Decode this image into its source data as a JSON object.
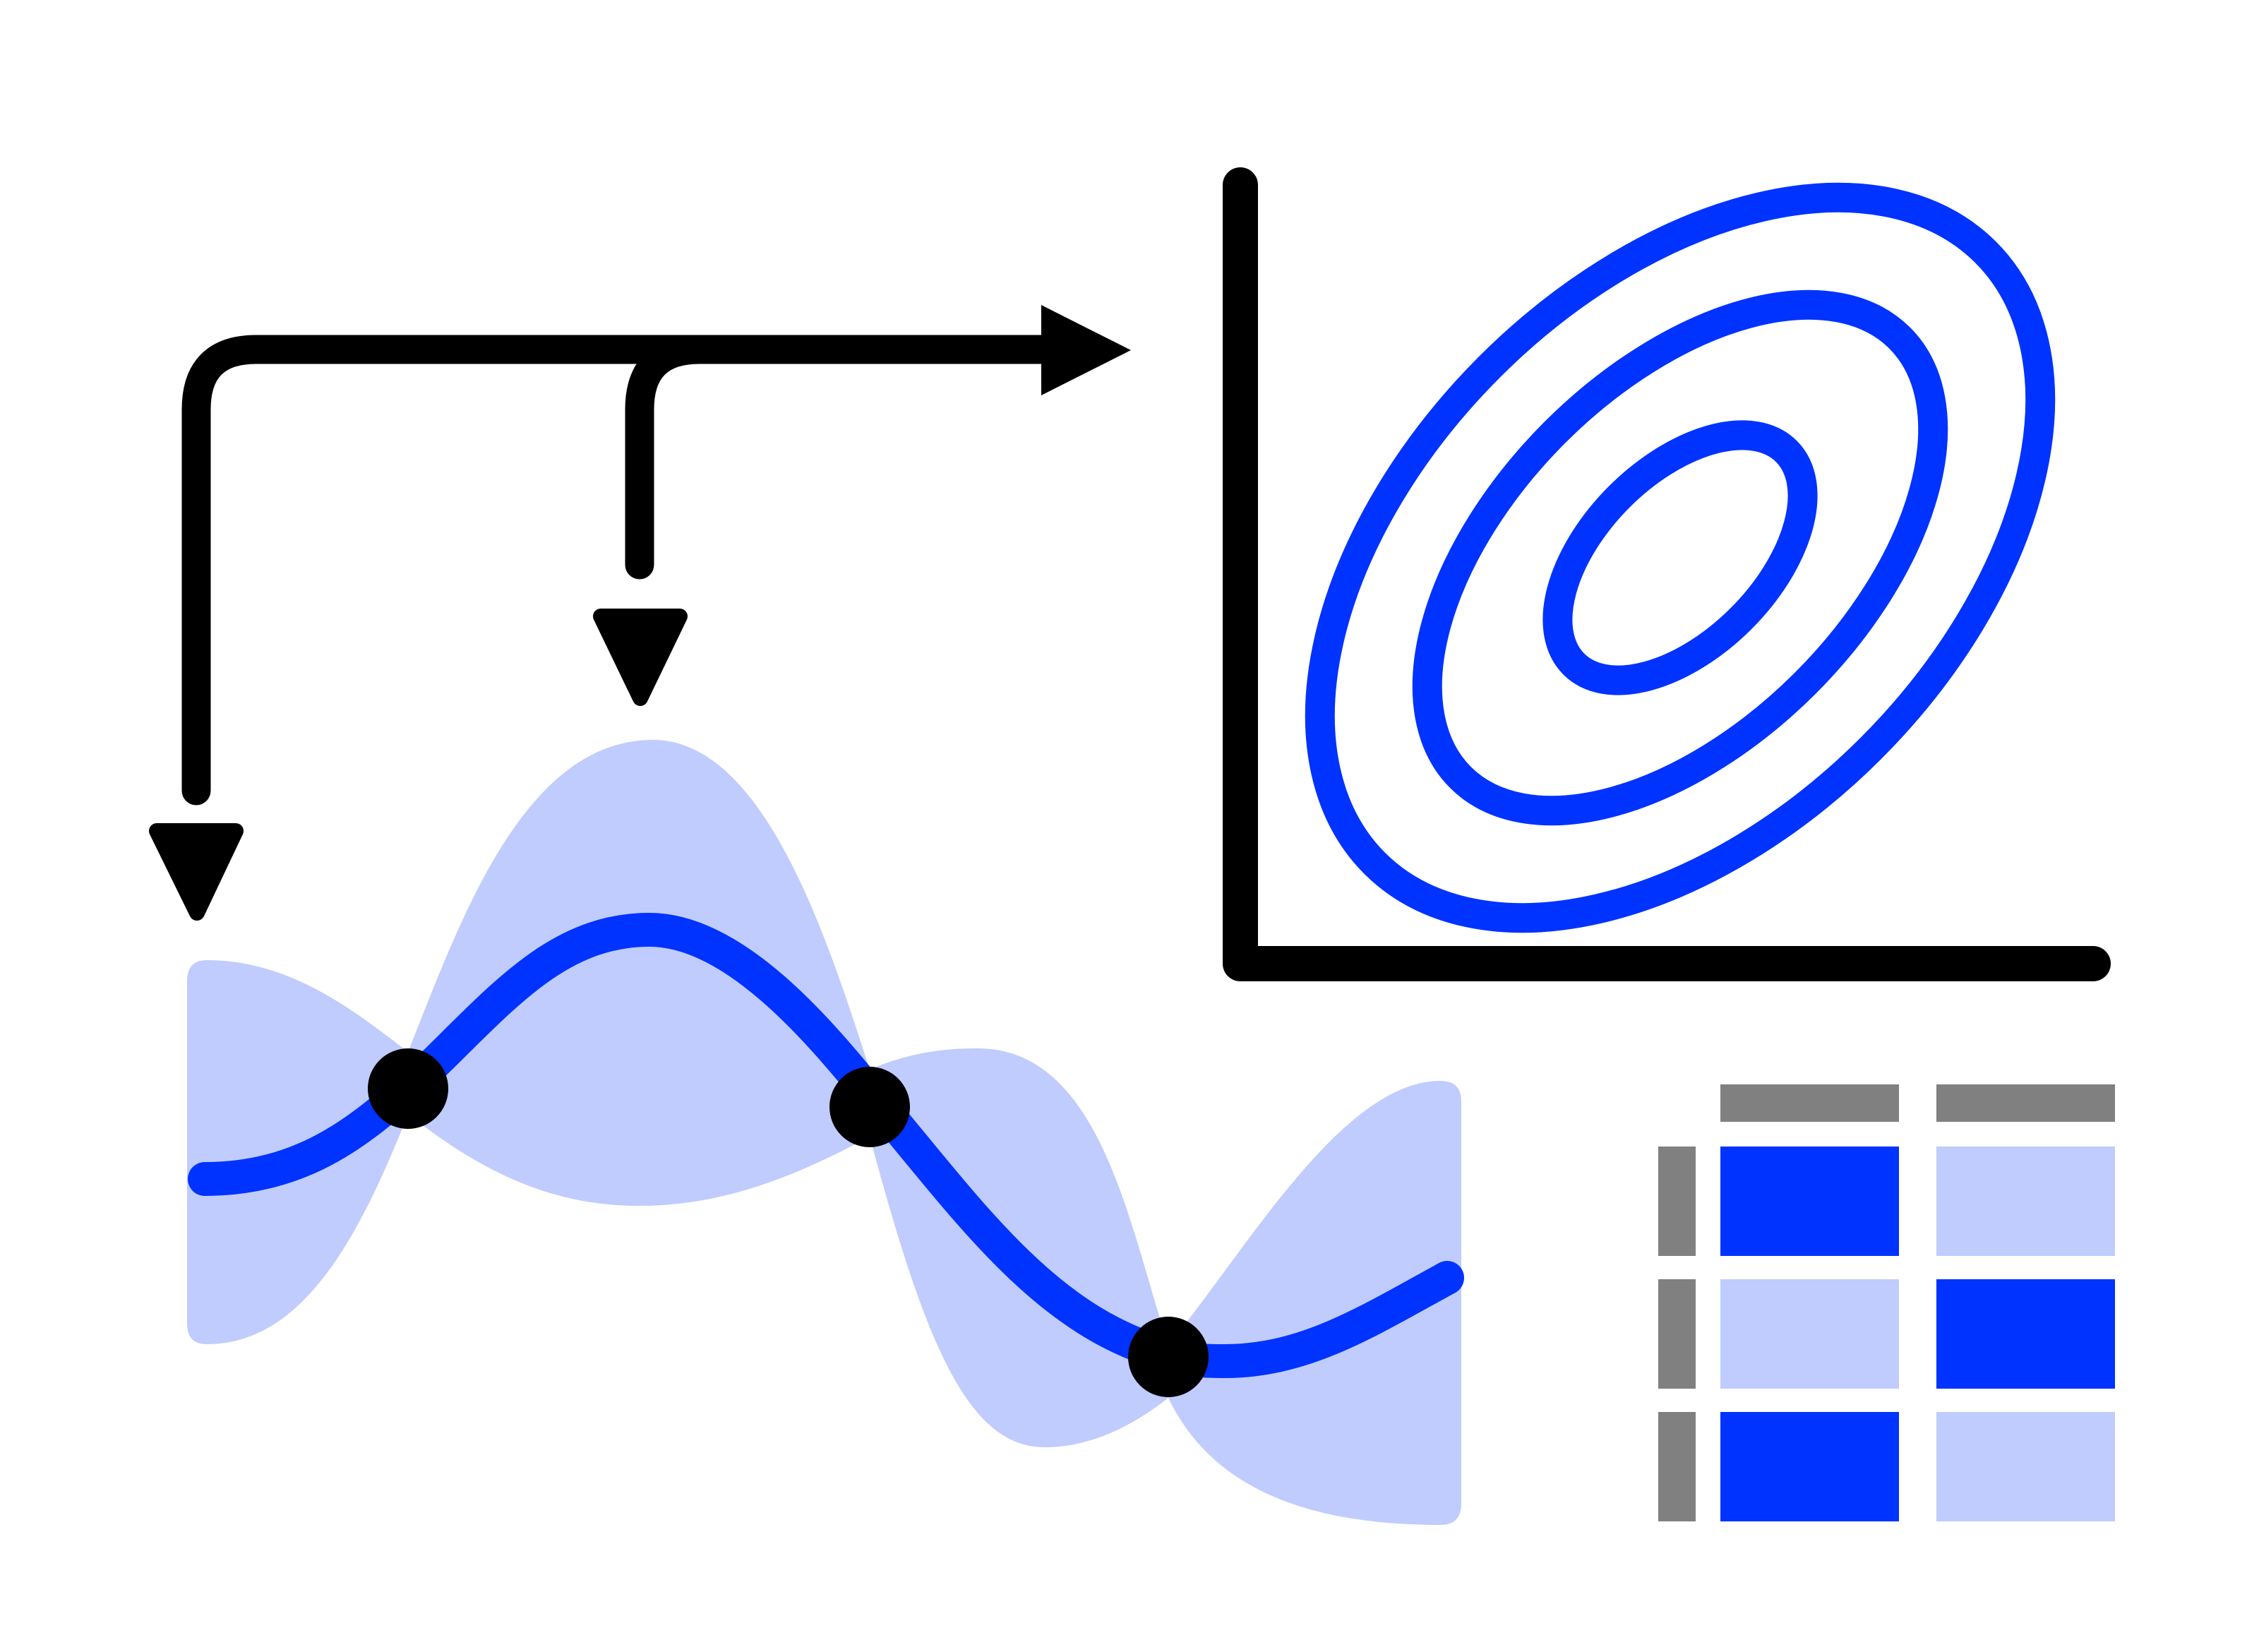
{
  "illustration": {
    "colors": {
      "background": "#ffffff",
      "ink": "#000000",
      "accent": "#0033ff",
      "accent_light": "#c0ccfd",
      "gray": "#808080"
    },
    "arrows": {
      "count": 3,
      "direction": [
        "down",
        "down",
        "right"
      ]
    },
    "gp_regression": {
      "observed_points": 4,
      "has_confidence_band": true
    },
    "contour_plot": {
      "levels": 3
    },
    "matrix": {
      "rows": 3,
      "columns": 2,
      "cells": [
        [
          "dark",
          "light"
        ],
        [
          "light",
          "dark"
        ],
        [
          "dark",
          "light"
        ]
      ]
    }
  }
}
